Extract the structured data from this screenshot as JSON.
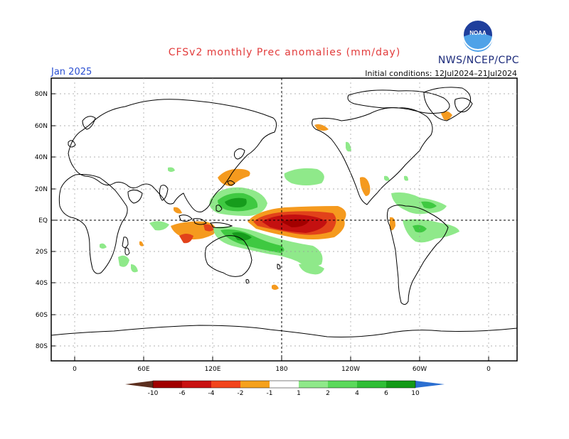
{
  "header": {
    "title": "CFSv2 monthly Prec anomalies (mm/day)",
    "agency": "NWS/NCEP/CPC",
    "logo_text": "NOAA",
    "month": "Jan 2025",
    "initial_conditions": "Initial conditions: 12Jul2024–21Jul2024"
  },
  "map": {
    "lat_labels": [
      "80N",
      "60N",
      "40N",
      "20N",
      "EQ",
      "20S",
      "40S",
      "60S",
      "80S"
    ],
    "lon_labels": [
      "0",
      "60E",
      "120E",
      "180",
      "120W",
      "60W",
      "0"
    ],
    "grid": true,
    "reference_lines": [
      "EQ",
      "180"
    ]
  },
  "colorbar": {
    "labels": [
      "-10",
      "-6",
      "-4",
      "-2",
      "-1",
      "1",
      "2",
      "4",
      "6",
      "10"
    ],
    "colors": [
      "#5c2f1f",
      "#a10000",
      "#c91212",
      "#e2421a",
      "#f46e12",
      "#f5a11c",
      "#ffffff",
      "#8fe98a",
      "#5ad95a",
      "#2fbe35",
      "#1aa61f",
      "#139a17",
      "#2b6fd1"
    ]
  },
  "colors": {
    "title": "#e23b3b",
    "agency": "#1b2a7a",
    "month": "#2a4fd1",
    "dry_strong": "#c41010",
    "dry_mid": "#e2421a",
    "dry_weak": "#f59a1e",
    "wet_weak": "#8fe98a",
    "wet_mid": "#3fc941",
    "wet_strong": "#169c1c"
  }
}
